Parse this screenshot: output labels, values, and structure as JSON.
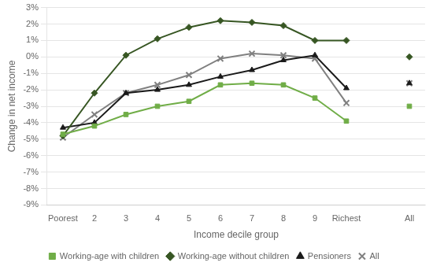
{
  "chart_data": {
    "type": "line",
    "xlabel": "Income decile group",
    "ylabel": "Change in net income",
    "categories": [
      "Poorest",
      "2",
      "3",
      "4",
      "5",
      "6",
      "7",
      "8",
      "9",
      "Richest",
      null,
      "All"
    ],
    "series": [
      {
        "name": "Working-age with children",
        "color": "#70ad47",
        "marker": "square",
        "values": [
          -4.7,
          -4.2,
          -3.5,
          -3.0,
          -2.7,
          -1.7,
          -1.6,
          -1.7,
          -2.5,
          -3.9,
          null,
          -3.0
        ]
      },
      {
        "name": "Working-age without children",
        "color": "#375623",
        "marker": "diamond",
        "values": [
          -4.8,
          -2.2,
          0.1,
          1.1,
          1.8,
          2.2,
          2.1,
          1.9,
          1.0,
          1.0,
          null,
          0.0
        ]
      },
      {
        "name": "Pensioners",
        "color": "#1a1a1a",
        "marker": "triangle",
        "values": [
          -4.3,
          -4.0,
          -2.2,
          -2.0,
          -1.7,
          -1.2,
          -0.8,
          -0.2,
          0.1,
          -1.9,
          null,
          -1.6
        ]
      },
      {
        "name": "All",
        "color": "#808080",
        "marker": "x",
        "values": [
          -4.9,
          -3.5,
          -2.2,
          -1.7,
          -1.1,
          -0.1,
          0.2,
          0.1,
          -0.1,
          -2.8,
          null,
          -1.6
        ]
      }
    ],
    "ylim": [
      -9,
      3
    ],
    "yticks": [
      {
        "value": -9,
        "label": "-9%"
      },
      {
        "value": -8,
        "label": "-8%"
      },
      {
        "value": -7,
        "label": "-7%"
      },
      {
        "value": -6,
        "label": "-6%"
      },
      {
        "value": -5,
        "label": "-5%"
      },
      {
        "value": -4,
        "label": "-4%"
      },
      {
        "value": -3,
        "label": "-3%"
      },
      {
        "value": -2,
        "label": "-2%"
      },
      {
        "value": -1,
        "label": "-1%"
      },
      {
        "value": 0,
        "label": "0%"
      },
      {
        "value": 1,
        "label": "1%"
      },
      {
        "value": 2,
        "label": "2%"
      },
      {
        "value": 3,
        "label": "3%"
      }
    ],
    "grid": true,
    "legend": "bottom"
  }
}
